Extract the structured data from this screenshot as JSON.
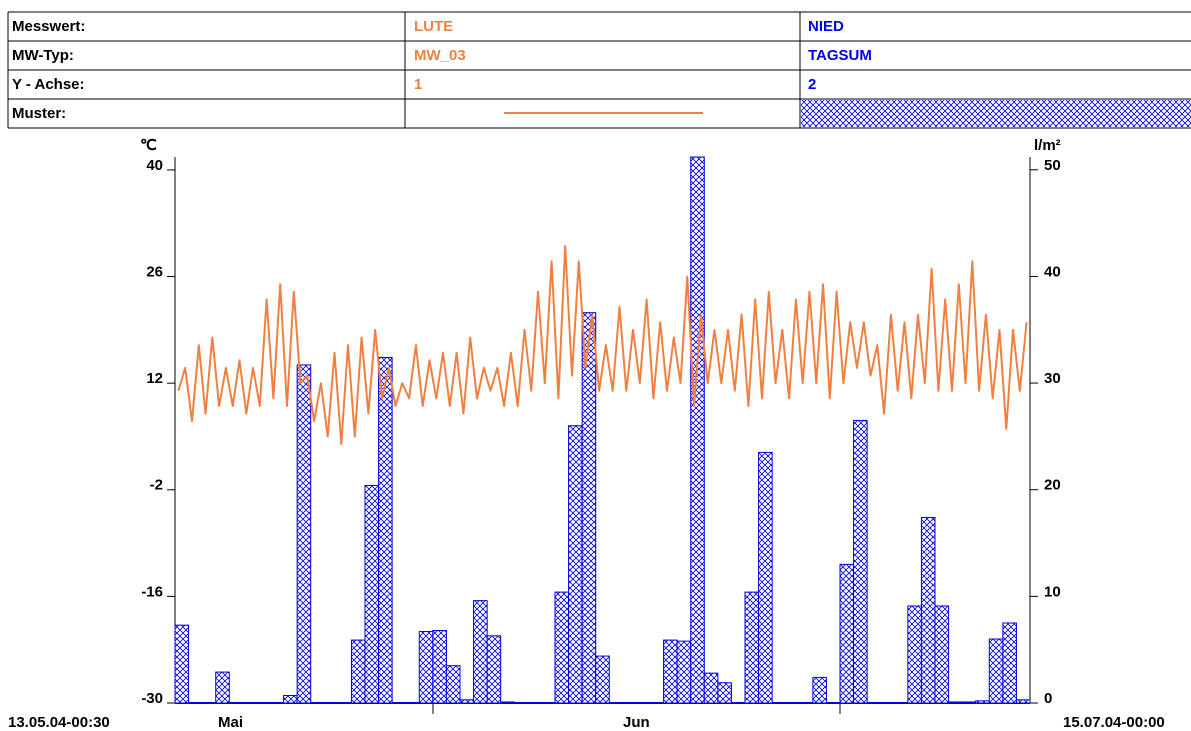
{
  "legend_table": {
    "rows": [
      [
        "Messwert:"
      ],
      [
        "MW-Typ:"
      ],
      [
        "Y - Achse:"
      ],
      [
        "Muster:"
      ]
    ]
  },
  "chart_data": {
    "type": "combo",
    "y_label": "℃",
    "y2_label": "l/m²",
    "start_label": "13.05.04-00:30",
    "end_label": "15.07.04-00:00",
    "month_labels": [
      "Mai",
      "Jun"
    ],
    "ylim": [
      -30,
      41.7
    ],
    "yticks": [
      -30,
      -16,
      -2,
      12,
      26,
      40
    ],
    "y2lim": [
      0,
      51.2
    ],
    "y2ticks": [
      0,
      10,
      20,
      30,
      40,
      50
    ],
    "series": [
      {
        "name": "LUTE",
        "mw_typ": "MW_03",
        "y_axis": "1",
        "type": "line",
        "axis": "y",
        "color": "#f08040",
        "values": [
          11,
          14,
          7,
          17,
          8,
          18,
          9,
          14,
          9,
          15,
          8,
          14,
          9,
          23,
          10,
          25,
          9,
          24,
          12,
          13,
          7,
          12,
          5,
          16,
          4,
          17,
          5,
          18,
          8,
          19,
          10,
          14,
          9,
          12,
          10,
          17,
          9,
          15,
          10,
          16,
          9,
          16,
          8,
          18,
          10,
          14,
          11,
          14,
          9,
          16,
          9,
          19,
          11,
          24,
          12,
          28,
          10,
          30,
          13,
          28,
          14,
          21,
          11,
          17,
          11,
          22,
          11,
          19,
          12,
          23,
          10,
          20,
          11,
          18,
          12,
          26,
          9,
          21,
          12,
          19,
          12,
          19,
          11,
          21,
          9,
          23,
          10,
          24,
          12,
          19,
          10,
          23,
          12,
          24,
          12,
          25,
          10,
          24,
          12,
          20,
          14,
          20,
          13,
          17,
          8,
          21,
          11,
          20,
          10,
          21,
          12,
          27,
          11,
          23,
          11,
          25,
          12,
          28,
          11,
          21,
          10,
          19,
          6,
          19,
          11,
          20
        ]
      },
      {
        "name": "NIED",
        "mw_typ": "TAGSUM",
        "y_axis": "2",
        "type": "bar",
        "axis": "y2",
        "color": "#0000e0",
        "values": [
          7.3,
          0,
          0,
          2.9,
          0,
          0,
          0,
          0,
          0.7,
          31.7,
          0,
          0,
          0,
          5.9,
          20.4,
          32.4,
          0,
          0,
          6.7,
          6.8,
          3.5,
          0.3,
          9.6,
          6.3,
          0.1,
          0,
          0,
          0,
          10.4,
          26,
          36.6,
          4.4,
          0,
          0,
          0,
          0,
          5.9,
          5.8,
          51.2,
          2.8,
          1.9,
          0,
          10.4,
          23.5,
          0,
          0,
          0,
          2.4,
          0,
          13,
          26.5,
          0,
          0,
          0,
          9.1,
          17.4,
          9.1,
          0.1,
          0.1,
          0.2,
          6,
          7.5,
          0.3
        ]
      }
    ]
  }
}
